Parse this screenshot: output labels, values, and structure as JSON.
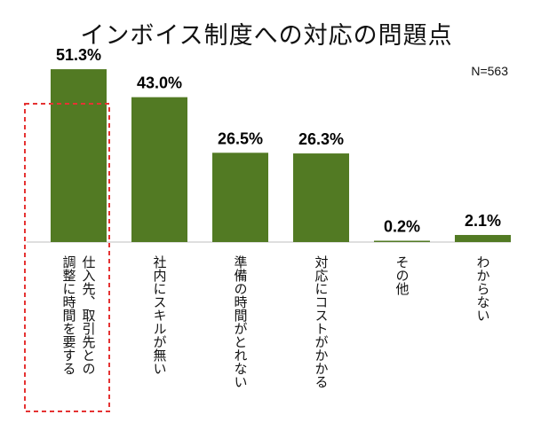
{
  "title": "インボイス制度への対応の問題点",
  "sample_size": "N=563",
  "colors": {
    "bar": "#527a23",
    "highlight": "#e53333",
    "baseline": "#bfbfbf"
  },
  "chart_data": {
    "type": "bar",
    "title": "インボイス制度への対応の問題点",
    "categories": [
      "仕入先、取引先との\n調整に時間を要する",
      "社内にスキルが無い",
      "準備の時間がとれない",
      "対応にコストがかかる",
      "その他",
      "わからない"
    ],
    "values": [
      51.3,
      43.0,
      26.5,
      26.3,
      0.2,
      2.1
    ],
    "value_labels": [
      "51.3%",
      "43.0%",
      "26.5%",
      "26.3%",
      "0.2%",
      "2.1%"
    ],
    "ylim": [
      0,
      60
    ],
    "highlighted_category_index": 0,
    "grid": false,
    "legend": "none"
  }
}
